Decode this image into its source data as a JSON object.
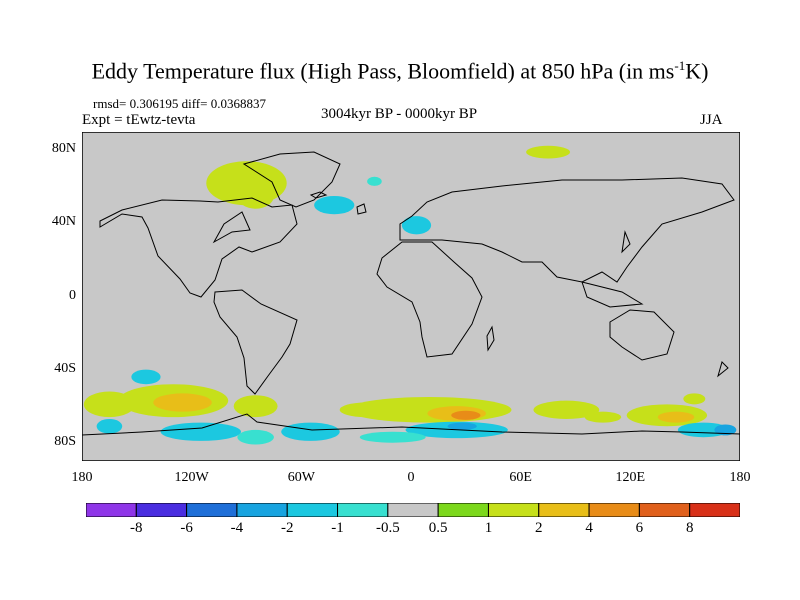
{
  "title": {
    "main": "Eddy Temperature flux (High Pass, Bloomfield) at 850 hPa (in ms",
    "sup": "-1",
    "end": "K)"
  },
  "stats": "rmsd= 0.306195 diff= 0.0368837",
  "experiment": "Expt = tEwtz-tevta",
  "period": "3004kyr BP - 0000kyr BP",
  "season": "JJA",
  "map": {
    "lat_range": [
      -90,
      90
    ],
    "lon_range": [
      -180,
      180
    ],
    "background": "#c8c8c8",
    "y_ticks": [
      {
        "label": "80N",
        "lat": 80
      },
      {
        "label": "40N",
        "lat": 40
      },
      {
        "label": "0",
        "lat": 0
      },
      {
        "label": "40S",
        "lat": -40
      },
      {
        "label": "80S",
        "lat": -80
      }
    ],
    "x_ticks": [
      {
        "label": "180",
        "lon": -180
      },
      {
        "label": "120W",
        "lon": -120
      },
      {
        "label": "60W",
        "lon": -60
      },
      {
        "label": "0",
        "lon": 0
      },
      {
        "label": "60E",
        "lon": 60
      },
      {
        "label": "120E",
        "lon": 120
      },
      {
        "label": "180",
        "lon": 180
      }
    ],
    "anomaly_blobs": [
      {
        "lon": -90,
        "lat": 62,
        "rlon": 22,
        "rlat": 12,
        "level": "1"
      },
      {
        "lon": -85,
        "lat": 55,
        "rlon": 10,
        "rlat": 7,
        "level": "1"
      },
      {
        "lon": -42,
        "lat": 50,
        "rlon": 11,
        "rlat": 5,
        "level": "-1"
      },
      {
        "lon": -20,
        "lat": 63,
        "rlon": 4,
        "rlat": 2.5,
        "level": "-0.5"
      },
      {
        "lon": 3,
        "lat": 39,
        "rlon": 8,
        "rlat": 5,
        "level": "-1"
      },
      {
        "lon": 75,
        "lat": 79,
        "rlon": 12,
        "rlat": 3.5,
        "level": "1"
      },
      {
        "lon": -145,
        "lat": -44,
        "rlon": 8,
        "rlat": 4,
        "level": "-1"
      },
      {
        "lon": -165,
        "lat": -59,
        "rlon": 14,
        "rlat": 7,
        "level": "1"
      },
      {
        "lon": -130,
        "lat": -57,
        "rlon": 30,
        "rlat": 9,
        "level": "1"
      },
      {
        "lon": -125,
        "lat": -58,
        "rlon": 16,
        "rlat": 5,
        "level": "2"
      },
      {
        "lon": -85,
        "lat": -60,
        "rlon": 12,
        "rlat": 6,
        "level": "1"
      },
      {
        "lon": -165,
        "lat": -71,
        "rlon": 7,
        "rlat": 4,
        "level": "-1"
      },
      {
        "lon": -115,
        "lat": -74,
        "rlon": 22,
        "rlat": 5,
        "level": "-1"
      },
      {
        "lon": -85,
        "lat": -77,
        "rlon": 10,
        "rlat": 4,
        "level": "-0.5"
      },
      {
        "lon": -55,
        "lat": -74,
        "rlon": 16,
        "rlat": 5,
        "level": "-1"
      },
      {
        "lon": -25,
        "lat": -62,
        "rlon": 14,
        "rlat": 4,
        "level": "1"
      },
      {
        "lon": 10,
        "lat": -62,
        "rlon": 45,
        "rlat": 7,
        "level": "1"
      },
      {
        "lon": 25,
        "lat": -64,
        "rlon": 16,
        "rlat": 4,
        "level": "2"
      },
      {
        "lon": 30,
        "lat": -65,
        "rlon": 8,
        "rlat": 2.5,
        "level": "4"
      },
      {
        "lon": 25,
        "lat": -73,
        "rlon": 28,
        "rlat": 4.5,
        "level": "-1"
      },
      {
        "lon": 28,
        "lat": -71,
        "rlon": 8,
        "rlat": 2,
        "level": "-2"
      },
      {
        "lon": -10,
        "lat": -77,
        "rlon": 18,
        "rlat": 3,
        "level": "-0.5"
      },
      {
        "lon": 85,
        "lat": -62,
        "rlon": 18,
        "rlat": 5,
        "level": "1"
      },
      {
        "lon": 105,
        "lat": -66,
        "rlon": 10,
        "rlat": 3,
        "level": "1"
      },
      {
        "lon": 140,
        "lat": -65,
        "rlon": 22,
        "rlat": 6,
        "level": "1"
      },
      {
        "lon": 145,
        "lat": -66,
        "rlon": 10,
        "rlat": 3,
        "level": "2"
      },
      {
        "lon": 155,
        "lat": -56,
        "rlon": 6,
        "rlat": 3,
        "level": "1"
      },
      {
        "lon": 160,
        "lat": -73,
        "rlon": 14,
        "rlat": 4,
        "level": "-1"
      },
      {
        "lon": 172,
        "lat": -73,
        "rlon": 6,
        "rlat": 3,
        "level": "-2"
      }
    ]
  },
  "colorbar": {
    "levels": [
      "-8",
      "-6",
      "-4",
      "-2",
      "-1",
      "-0.5",
      "0.5",
      "1",
      "2",
      "4",
      "6",
      "8"
    ],
    "colors": [
      "#8f35e8",
      "#4a2ee0",
      "#1f6fd8",
      "#18a4e0",
      "#1cc8e0",
      "#38e0d0",
      "#c8c8c8",
      "#7cd81c",
      "#c6e01a",
      "#e8be18",
      "#e88c18",
      "#e0601c",
      "#d83018"
    ]
  }
}
